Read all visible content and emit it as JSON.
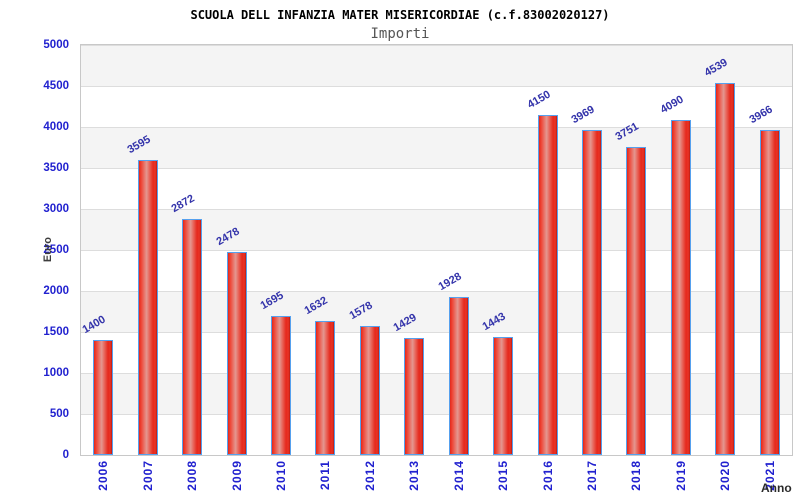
{
  "chart_data": {
    "type": "bar",
    "title": "SCUOLA DELL INFANZIA MATER MISERICORDIAE (c.f.83002020127)",
    "subtitle": "Importi",
    "xlabel": "Anno",
    "ylabel": "Euro",
    "categories": [
      "2006",
      "2007",
      "2008",
      "2009",
      "2010",
      "2011",
      "2012",
      "2013",
      "2014",
      "2015",
      "2016",
      "2017",
      "2018",
      "2019",
      "2020",
      "2021"
    ],
    "values": [
      1400,
      3595,
      2872,
      2478,
      1695,
      1632,
      1578,
      1429,
      1928,
      1443,
      4150,
      3969,
      3751,
      4090,
      4539,
      3966
    ],
    "ylim": [
      0,
      5000
    ],
    "ytick_step": 500,
    "grid": "horizontal alternating bands with gridlines every 500",
    "legend": "none",
    "colors": {
      "bar_fill": "#e5291d",
      "bar_border": "#55a0ee",
      "tick_label": "#2121cf",
      "value_label": "#3333aa",
      "band": "#f4f4f4",
      "title": "#000000",
      "subtitle": "#555555"
    }
  }
}
